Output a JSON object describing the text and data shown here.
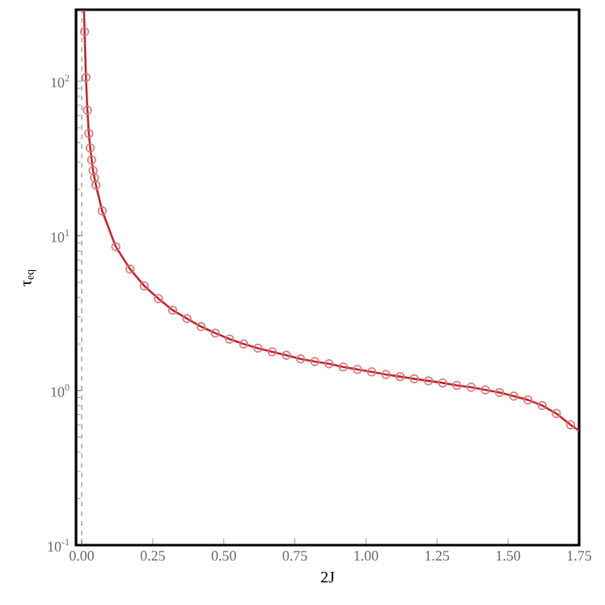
{
  "chart_data": {
    "type": "line",
    "xlabel": "2J",
    "ylabel": "τ$_{eq}$",
    "log": "y",
    "grid": false,
    "xlim": [
      -0.02,
      1.75
    ],
    "ylim": [
      0.1,
      290
    ],
    "xticks": [
      {
        "value": 0,
        "label": "0.00"
      },
      {
        "value": 0.25,
        "label": "0.25"
      },
      {
        "value": 0.5,
        "label": "0.50"
      },
      {
        "value": 0.75,
        "label": "0.75"
      },
      {
        "value": 1,
        "label": "1.00"
      },
      {
        "value": 1.25,
        "label": "1.25"
      },
      {
        "value": 1.5,
        "label": "1.50"
      },
      {
        "value": 1.75,
        "label": "1.75"
      }
    ],
    "yticks": [
      {
        "value": 0.1,
        "label": "10$^{-1}$"
      },
      {
        "value": 1,
        "label": "10$^{0}$"
      },
      {
        "value": 10,
        "label": "10$^{1}$"
      },
      {
        "value": 100,
        "label": "10$^{2}$"
      }
    ],
    "ref_lines": [
      {
        "axis": "x",
        "value": 0,
        "color": "#555555",
        "line_style": "dashed"
      }
    ],
    "series": [
      {
        "color": "#c0282d",
        "marker": "none",
        "line_style": "solid",
        "x": [
          0.008,
          0.01,
          0.015,
          0.02,
          0.025,
          0.03,
          0.035,
          0.04,
          0.045,
          0.05,
          0.072,
          0.12,
          0.17,
          0.22,
          0.27,
          0.32,
          0.37,
          0.42,
          0.47,
          0.52,
          0.57,
          0.62,
          0.67,
          0.72,
          0.77,
          0.82,
          0.87,
          0.92,
          0.97,
          1.02,
          1.07,
          1.12,
          1.17,
          1.22,
          1.27,
          1.32,
          1.37,
          1.42,
          1.47,
          1.52,
          1.57,
          1.62,
          1.67,
          1.72,
          1.75
        ],
        "values": [
          290,
          209,
          106,
          65,
          46,
          37,
          31,
          26.5,
          23.7,
          21.3,
          14.5,
          8.5,
          6.1,
          4.75,
          3.93,
          3.31,
          2.92,
          2.59,
          2.35,
          2.15,
          2.0,
          1.88,
          1.78,
          1.69,
          1.6,
          1.54,
          1.49,
          1.42,
          1.37,
          1.32,
          1.27,
          1.23,
          1.19,
          1.155,
          1.12,
          1.08,
          1.05,
          1.01,
          0.97,
          0.92,
          0.87,
          0.8,
          0.71,
          0.6,
          0.55
        ]
      },
      {
        "type": "scatter",
        "color": "#d9777a",
        "marker": "circle",
        "x": [
          0.01,
          0.015,
          0.02,
          0.025,
          0.03,
          0.035,
          0.04,
          0.045,
          0.05,
          0.072,
          0.12,
          0.17,
          0.22,
          0.27,
          0.32,
          0.37,
          0.42,
          0.47,
          0.52,
          0.57,
          0.62,
          0.67,
          0.72,
          0.77,
          0.82,
          0.87,
          0.92,
          0.97,
          1.02,
          1.07,
          1.12,
          1.17,
          1.22,
          1.27,
          1.32,
          1.37,
          1.42,
          1.47,
          1.52,
          1.57,
          1.62,
          1.67,
          1.72
        ],
        "values": [
          209,
          106,
          65,
          46,
          37,
          31,
          26.5,
          23.7,
          21.3,
          14.5,
          8.5,
          6.1,
          4.75,
          3.93,
          3.31,
          2.92,
          2.59,
          2.35,
          2.15,
          2.0,
          1.88,
          1.78,
          1.69,
          1.6,
          1.54,
          1.49,
          1.42,
          1.37,
          1.32,
          1.27,
          1.23,
          1.19,
          1.155,
          1.12,
          1.08,
          1.05,
          1.01,
          0.97,
          0.92,
          0.87,
          0.8,
          0.71,
          0.6
        ]
      }
    ]
  }
}
